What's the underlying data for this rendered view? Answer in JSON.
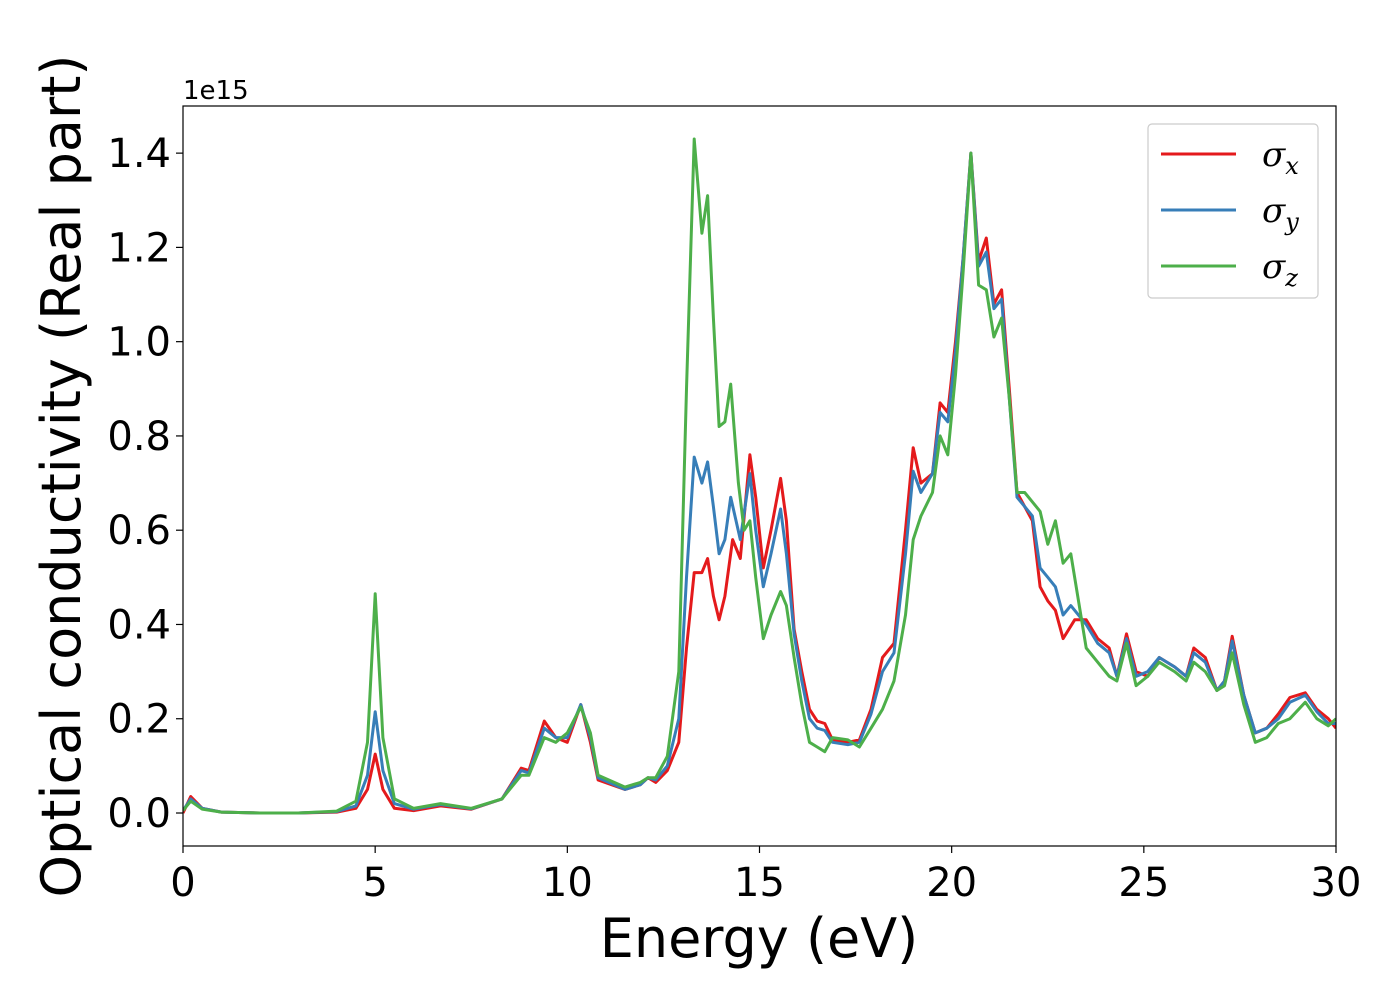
{
  "chart_data": {
    "type": "line",
    "title": "",
    "xlabel": "Energy (eV)",
    "ylabel": "Optical conductivity (Real part)",
    "y_offset_label": "1e15",
    "xlim": [
      0,
      30
    ],
    "ylim": [
      -0.07,
      1.5
    ],
    "xticks": [
      0,
      5,
      10,
      15,
      20,
      25,
      30
    ],
    "xtick_labels": [
      "0",
      "5",
      "10",
      "15",
      "20",
      "25",
      "30"
    ],
    "yticks": [
      0.0,
      0.2,
      0.4,
      0.6,
      0.8,
      1.0,
      1.2,
      1.4
    ],
    "ytick_labels": [
      "0.0",
      "0.2",
      "0.4",
      "0.6",
      "0.8",
      "1.0",
      "1.2",
      "1.4"
    ],
    "grid": false,
    "legend_position": "top-right",
    "series": [
      {
        "name": "σx",
        "symbol": "σ",
        "subscript": "x",
        "color": "#e41a1c",
        "points": [
          [
            0,
            0.0
          ],
          [
            0.2,
            0.035
          ],
          [
            0.5,
            0.01
          ],
          [
            1,
            0.002
          ],
          [
            2,
            0.0
          ],
          [
            3,
            0.0
          ],
          [
            4,
            0.002
          ],
          [
            4.5,
            0.01
          ],
          [
            4.8,
            0.05
          ],
          [
            5.0,
            0.125
          ],
          [
            5.2,
            0.05
          ],
          [
            5.5,
            0.01
          ],
          [
            6,
            0.005
          ],
          [
            6.7,
            0.015
          ],
          [
            7.5,
            0.008
          ],
          [
            8.3,
            0.03
          ],
          [
            8.8,
            0.095
          ],
          [
            9.0,
            0.09
          ],
          [
            9.4,
            0.195
          ],
          [
            9.7,
            0.16
          ],
          [
            10.0,
            0.15
          ],
          [
            10.35,
            0.23
          ],
          [
            10.6,
            0.15
          ],
          [
            10.8,
            0.07
          ],
          [
            11.5,
            0.05
          ],
          [
            11.9,
            0.06
          ],
          [
            12.1,
            0.075
          ],
          [
            12.3,
            0.065
          ],
          [
            12.6,
            0.09
          ],
          [
            12.9,
            0.15
          ],
          [
            13.1,
            0.35
          ],
          [
            13.3,
            0.51
          ],
          [
            13.5,
            0.51
          ],
          [
            13.65,
            0.54
          ],
          [
            13.8,
            0.46
          ],
          [
            13.95,
            0.41
          ],
          [
            14.1,
            0.46
          ],
          [
            14.3,
            0.58
          ],
          [
            14.5,
            0.54
          ],
          [
            14.75,
            0.76
          ],
          [
            14.9,
            0.67
          ],
          [
            15.1,
            0.52
          ],
          [
            15.3,
            0.6
          ],
          [
            15.55,
            0.71
          ],
          [
            15.7,
            0.62
          ],
          [
            15.9,
            0.39
          ],
          [
            16.1,
            0.3
          ],
          [
            16.3,
            0.22
          ],
          [
            16.5,
            0.195
          ],
          [
            16.7,
            0.19
          ],
          [
            16.9,
            0.155
          ],
          [
            17.3,
            0.15
          ],
          [
            17.6,
            0.155
          ],
          [
            17.9,
            0.22
          ],
          [
            18.2,
            0.33
          ],
          [
            18.5,
            0.36
          ],
          [
            18.8,
            0.6
          ],
          [
            19.0,
            0.775
          ],
          [
            19.2,
            0.7
          ],
          [
            19.5,
            0.72
          ],
          [
            19.7,
            0.87
          ],
          [
            19.9,
            0.85
          ],
          [
            20.1,
            1.0
          ],
          [
            20.3,
            1.18
          ],
          [
            20.5,
            1.4
          ],
          [
            20.7,
            1.17
          ],
          [
            20.9,
            1.22
          ],
          [
            21.1,
            1.08
          ],
          [
            21.3,
            1.11
          ],
          [
            21.5,
            0.9
          ],
          [
            21.7,
            0.68
          ],
          [
            21.9,
            0.65
          ],
          [
            22.1,
            0.62
          ],
          [
            22.3,
            0.48
          ],
          [
            22.5,
            0.45
          ],
          [
            22.7,
            0.43
          ],
          [
            22.9,
            0.37
          ],
          [
            23.2,
            0.41
          ],
          [
            23.5,
            0.41
          ],
          [
            23.8,
            0.37
          ],
          [
            24.1,
            0.35
          ],
          [
            24.3,
            0.29
          ],
          [
            24.55,
            0.38
          ],
          [
            24.8,
            0.3
          ],
          [
            25.1,
            0.29
          ],
          [
            25.4,
            0.33
          ],
          [
            25.8,
            0.31
          ],
          [
            26.1,
            0.29
          ],
          [
            26.3,
            0.35
          ],
          [
            26.6,
            0.33
          ],
          [
            26.9,
            0.26
          ],
          [
            27.1,
            0.28
          ],
          [
            27.3,
            0.375
          ],
          [
            27.6,
            0.25
          ],
          [
            27.9,
            0.17
          ],
          [
            28.2,
            0.18
          ],
          [
            28.5,
            0.21
          ],
          [
            28.8,
            0.245
          ],
          [
            29.2,
            0.255
          ],
          [
            29.5,
            0.22
          ],
          [
            29.8,
            0.2
          ],
          [
            30,
            0.18
          ]
        ]
      },
      {
        "name": "σy",
        "symbol": "σ",
        "subscript": "y",
        "color": "#377eb8",
        "points": [
          [
            0,
            0.005
          ],
          [
            0.2,
            0.03
          ],
          [
            0.5,
            0.01
          ],
          [
            1,
            0.002
          ],
          [
            2,
            0.0
          ],
          [
            3,
            0.0
          ],
          [
            4,
            0.003
          ],
          [
            4.5,
            0.015
          ],
          [
            4.8,
            0.08
          ],
          [
            5.0,
            0.215
          ],
          [
            5.2,
            0.09
          ],
          [
            5.5,
            0.02
          ],
          [
            6,
            0.008
          ],
          [
            6.7,
            0.018
          ],
          [
            7.5,
            0.009
          ],
          [
            8.3,
            0.03
          ],
          [
            8.8,
            0.09
          ],
          [
            9.0,
            0.085
          ],
          [
            9.4,
            0.18
          ],
          [
            9.7,
            0.16
          ],
          [
            10.0,
            0.16
          ],
          [
            10.35,
            0.23
          ],
          [
            10.6,
            0.16
          ],
          [
            10.8,
            0.075
          ],
          [
            11.5,
            0.05
          ],
          [
            11.9,
            0.06
          ],
          [
            12.1,
            0.075
          ],
          [
            12.3,
            0.07
          ],
          [
            12.6,
            0.1
          ],
          [
            12.9,
            0.2
          ],
          [
            13.1,
            0.5
          ],
          [
            13.3,
            0.755
          ],
          [
            13.5,
            0.7
          ],
          [
            13.65,
            0.745
          ],
          [
            13.8,
            0.65
          ],
          [
            13.95,
            0.55
          ],
          [
            14.1,
            0.58
          ],
          [
            14.25,
            0.67
          ],
          [
            14.5,
            0.58
          ],
          [
            14.75,
            0.72
          ],
          [
            14.9,
            0.6
          ],
          [
            15.1,
            0.48
          ],
          [
            15.3,
            0.55
          ],
          [
            15.55,
            0.645
          ],
          [
            15.7,
            0.55
          ],
          [
            15.9,
            0.38
          ],
          [
            16.1,
            0.28
          ],
          [
            16.3,
            0.2
          ],
          [
            16.5,
            0.18
          ],
          [
            16.7,
            0.175
          ],
          [
            16.9,
            0.15
          ],
          [
            17.3,
            0.145
          ],
          [
            17.6,
            0.15
          ],
          [
            17.9,
            0.21
          ],
          [
            18.2,
            0.3
          ],
          [
            18.5,
            0.34
          ],
          [
            18.8,
            0.55
          ],
          [
            19.0,
            0.725
          ],
          [
            19.2,
            0.68
          ],
          [
            19.5,
            0.72
          ],
          [
            19.7,
            0.85
          ],
          [
            19.9,
            0.83
          ],
          [
            20.1,
            0.98
          ],
          [
            20.3,
            1.18
          ],
          [
            20.5,
            1.4
          ],
          [
            20.7,
            1.16
          ],
          [
            20.9,
            1.19
          ],
          [
            21.1,
            1.07
          ],
          [
            21.3,
            1.09
          ],
          [
            21.5,
            0.88
          ],
          [
            21.7,
            0.67
          ],
          [
            21.9,
            0.65
          ],
          [
            22.1,
            0.63
          ],
          [
            22.3,
            0.52
          ],
          [
            22.5,
            0.5
          ],
          [
            22.7,
            0.48
          ],
          [
            22.9,
            0.42
          ],
          [
            23.1,
            0.44
          ],
          [
            23.5,
            0.4
          ],
          [
            23.8,
            0.36
          ],
          [
            24.1,
            0.34
          ],
          [
            24.3,
            0.29
          ],
          [
            24.55,
            0.37
          ],
          [
            24.8,
            0.29
          ],
          [
            25.1,
            0.3
          ],
          [
            25.4,
            0.33
          ],
          [
            25.8,
            0.31
          ],
          [
            26.1,
            0.29
          ],
          [
            26.3,
            0.34
          ],
          [
            26.6,
            0.32
          ],
          [
            26.9,
            0.26
          ],
          [
            27.1,
            0.28
          ],
          [
            27.3,
            0.365
          ],
          [
            27.6,
            0.25
          ],
          [
            27.9,
            0.17
          ],
          [
            28.2,
            0.18
          ],
          [
            28.5,
            0.2
          ],
          [
            28.8,
            0.235
          ],
          [
            29.2,
            0.25
          ],
          [
            29.5,
            0.215
          ],
          [
            29.8,
            0.19
          ],
          [
            30,
            0.19
          ]
        ]
      },
      {
        "name": "σz",
        "symbol": "σ",
        "subscript": "z",
        "color": "#4daf4a",
        "points": [
          [
            0,
            0.005
          ],
          [
            0.2,
            0.025
          ],
          [
            0.5,
            0.008
          ],
          [
            1,
            0.002
          ],
          [
            2,
            0.0
          ],
          [
            3,
            0.0
          ],
          [
            4,
            0.004
          ],
          [
            4.5,
            0.025
          ],
          [
            4.8,
            0.15
          ],
          [
            5.0,
            0.465
          ],
          [
            5.2,
            0.16
          ],
          [
            5.5,
            0.03
          ],
          [
            6,
            0.01
          ],
          [
            6.7,
            0.02
          ],
          [
            7.5,
            0.01
          ],
          [
            8.3,
            0.03
          ],
          [
            8.8,
            0.08
          ],
          [
            9.0,
            0.08
          ],
          [
            9.4,
            0.16
          ],
          [
            9.7,
            0.15
          ],
          [
            10.0,
            0.17
          ],
          [
            10.35,
            0.225
          ],
          [
            10.6,
            0.17
          ],
          [
            10.8,
            0.08
          ],
          [
            11.5,
            0.055
          ],
          [
            11.9,
            0.065
          ],
          [
            12.1,
            0.075
          ],
          [
            12.3,
            0.075
          ],
          [
            12.6,
            0.12
          ],
          [
            12.9,
            0.3
          ],
          [
            13.1,
            0.9
          ],
          [
            13.3,
            1.43
          ],
          [
            13.5,
            1.23
          ],
          [
            13.65,
            1.31
          ],
          [
            13.8,
            1.05
          ],
          [
            13.95,
            0.82
          ],
          [
            14.1,
            0.83
          ],
          [
            14.25,
            0.91
          ],
          [
            14.45,
            0.7
          ],
          [
            14.6,
            0.6
          ],
          [
            14.75,
            0.62
          ],
          [
            14.9,
            0.5
          ],
          [
            15.1,
            0.37
          ],
          [
            15.3,
            0.42
          ],
          [
            15.55,
            0.47
          ],
          [
            15.7,
            0.44
          ],
          [
            15.9,
            0.33
          ],
          [
            16.1,
            0.23
          ],
          [
            16.3,
            0.15
          ],
          [
            16.5,
            0.14
          ],
          [
            16.7,
            0.13
          ],
          [
            16.9,
            0.16
          ],
          [
            17.3,
            0.155
          ],
          [
            17.6,
            0.14
          ],
          [
            17.9,
            0.18
          ],
          [
            18.2,
            0.22
          ],
          [
            18.5,
            0.28
          ],
          [
            18.8,
            0.42
          ],
          [
            19.0,
            0.58
          ],
          [
            19.2,
            0.63
          ],
          [
            19.5,
            0.68
          ],
          [
            19.7,
            0.8
          ],
          [
            19.9,
            0.76
          ],
          [
            20.1,
            0.93
          ],
          [
            20.3,
            1.15
          ],
          [
            20.5,
            1.4
          ],
          [
            20.7,
            1.12
          ],
          [
            20.9,
            1.11
          ],
          [
            21.1,
            1.01
          ],
          [
            21.3,
            1.05
          ],
          [
            21.5,
            0.88
          ],
          [
            21.7,
            0.68
          ],
          [
            21.9,
            0.68
          ],
          [
            22.1,
            0.66
          ],
          [
            22.3,
            0.64
          ],
          [
            22.5,
            0.57
          ],
          [
            22.7,
            0.62
          ],
          [
            22.9,
            0.53
          ],
          [
            23.1,
            0.55
          ],
          [
            23.5,
            0.35
          ],
          [
            23.8,
            0.32
          ],
          [
            24.1,
            0.29
          ],
          [
            24.3,
            0.28
          ],
          [
            24.55,
            0.36
          ],
          [
            24.8,
            0.27
          ],
          [
            25.1,
            0.29
          ],
          [
            25.4,
            0.32
          ],
          [
            25.8,
            0.3
          ],
          [
            26.1,
            0.28
          ],
          [
            26.3,
            0.32
          ],
          [
            26.6,
            0.3
          ],
          [
            26.9,
            0.26
          ],
          [
            27.1,
            0.27
          ],
          [
            27.3,
            0.34
          ],
          [
            27.6,
            0.23
          ],
          [
            27.9,
            0.15
          ],
          [
            28.2,
            0.16
          ],
          [
            28.5,
            0.19
          ],
          [
            28.8,
            0.2
          ],
          [
            29.2,
            0.235
          ],
          [
            29.5,
            0.2
          ],
          [
            29.8,
            0.185
          ],
          [
            30,
            0.2
          ]
        ]
      }
    ]
  }
}
